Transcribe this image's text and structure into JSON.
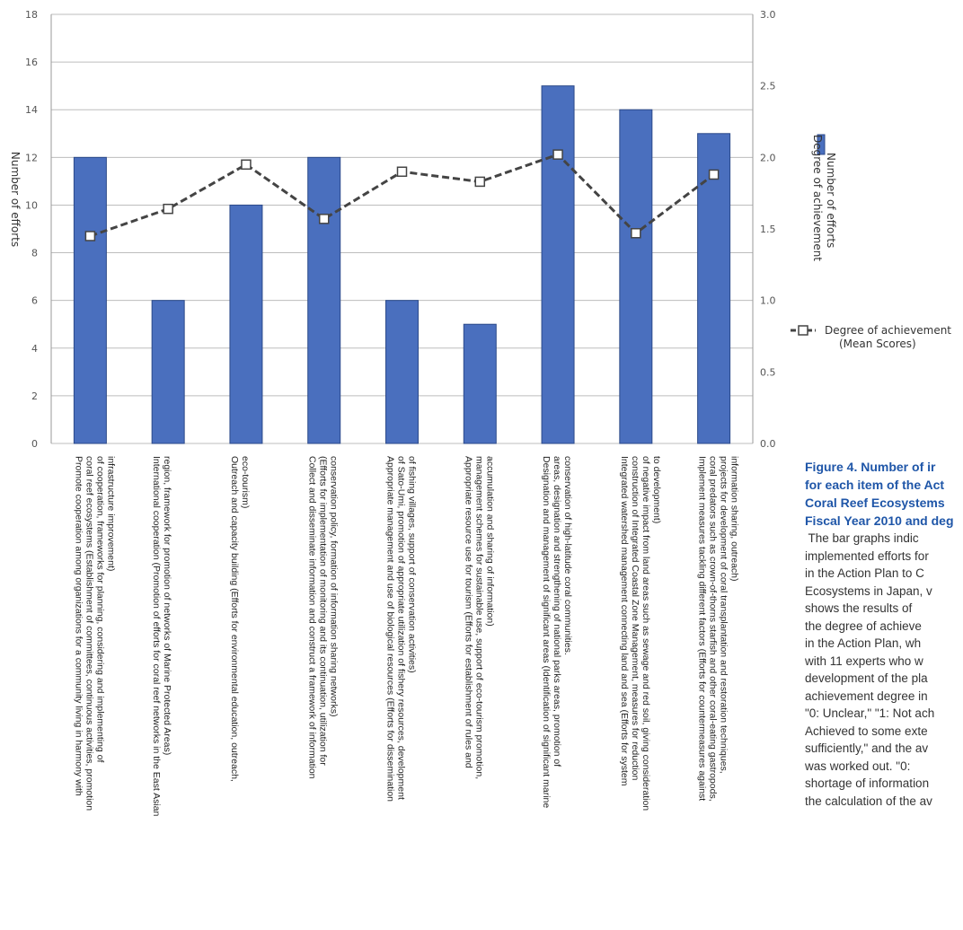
{
  "chart_data": {
    "type": "bar",
    "categories": [
      "Promote cooperation among organizations for a community living in harmony with coral reef ecosystems (Establishment of committees, continuous activities, promotion of cooperation, frameworks for planning, considering and implementing of infrastructure improvement)",
      "International cooperation (Promotion of efforts for coral reef networks in the East Asian region, framework for promotion of networks of Marine Protected Areas)",
      "Outreach and capacity building (Efforts for environmental education, outreach, eco-tourism)",
      "Collect and disseminate information and construct a framework of information (Efforts for implementation of monitoring and its continuation, utilization for conservation policy, formation of information sharing networks)",
      "Appropriate management and use of biological resources (Efforts for dissemination of Sato-Umi, promotion of appropriate utilization of fishery resources, development of fishing villages, support of conservation activities)",
      "Appropriate resource use for tourism (Efforts for establishment of rules and management schemes for sustainable use, support of eco-tourism promotion, accumulation and sharing of information)",
      "Designation and management of significant areas (Identification of significant marine areas, designation and strengthening of national parks areas, promotion of conservation of high-latitude coral communities.",
      "Integrated watershed management connecting land and sea (Efforts for system construction of Integrated Coastal Zone Management, measures for reduction of negative impact from land areas such as sewage and red soil, giving consideration to development)",
      "Implement measures tackling different factors (Efforts for countermeasures against coral predators such as crown-of-thorns starfish and other coral-eating gastropods, projects for development of coral transplantation and restoration techniques, information sharing, outreach)"
    ],
    "category_lines": [
      [
        "Promote cooperation among organizations for a community living in harmony with",
        "coral reef ecosystems (Establishment of committees, continuous activities, promotion",
        "of cooperation, frameworks for planning, considering and implementing of",
        "infrastructure improvement)"
      ],
      [
        "International cooperation (Promotion of efforts for coral reef networks in the East Asian",
        "region, framework for promotion of networks of Marine Protected Areas)"
      ],
      [
        "Outreach  and capacity building (Efforts for environmental education, outreach,",
        "eco-tourism)"
      ],
      [
        "Collect and disseminate information and construct a framework of information",
        "(Efforts for implementation of monitoring and its continuation, utilization for",
        "conservation policy, formation of information sharing networks)"
      ],
      [
        "Appropriate management and use of biological resources (Efforts for dissemination",
        "of Sato-Umi, promotion of appropriate utilization of fishery resources, development",
        "of fishing villages, support of conservation activities)"
      ],
      [
        "Appropriate resource use for tourism (Efforts for establishment of rules and",
        "management schemes for sustainable use, support of eco-tourism promotion,",
        "accumulation and sharing of information)"
      ],
      [
        "Designation and management of significant areas (Identification of significant marine",
        "areas, designation and strengthening of national parks areas, promotion of",
        "conservation of high-latitude coral communities."
      ],
      [
        "Integrated watershed management connecting land and sea (Efforts for system",
        "construction of Integrated Coastal Zone Management, measures for reduction",
        "of negative impact from land areas such as sewage and red soil, giving consideration",
        "to development)"
      ],
      [
        "Implement measures tackling different factors (Efforts for countermeasures against",
        "coral predators such as crown-of-thorns starfish and other coral-eating gastropods,",
        "projects for development of coral transplantation and restoration techniques,",
        "information sharing, outreach)"
      ]
    ],
    "series": [
      {
        "name": "Number of efforts",
        "type": "bar",
        "axis": "left",
        "values": [
          12,
          6,
          10,
          12,
          6,
          5,
          15,
          14,
          13
        ]
      },
      {
        "name": "Degree of achievement (Mean Scores)",
        "type": "line",
        "axis": "right",
        "values": [
          1.45,
          1.64,
          1.95,
          1.57,
          1.9,
          1.83,
          2.02,
          1.47,
          1.88
        ]
      }
    ],
    "ylabel": "Number of efforts",
    "y2label": "Degree of achievement",
    "ylim": [
      0,
      18
    ],
    "y2lim": [
      0,
      3.0
    ],
    "yticks": [
      "0",
      "2",
      "4",
      "6",
      "8",
      "10",
      "12",
      "14",
      "16",
      "18"
    ],
    "y2ticks": [
      "0.0",
      "0.5",
      "1.0",
      "1.5",
      "2.0",
      "2.5",
      "3.0"
    ],
    "grid": true,
    "legend": {
      "placement": "right",
      "bar_label": "Number of efforts",
      "line_label_1": "Degree of achievement",
      "line_label_2": "(Mean Scores)"
    },
    "colors": {
      "bar": "#4a6fbe",
      "bar_edge": "#2c4a8a",
      "line": "#444444",
      "grid": "#bdbdbd"
    }
  },
  "caption": {
    "title_lines": [
      "Figure 4. Number of ir",
      "for each item of the Act",
      "Coral Reef Ecosystems",
      "Fiscal Year 2010 and deg"
    ],
    "body_lines": [
      " The bar graphs indic",
      "implemented efforts for",
      "in the Action Plan to C",
      "Ecosystems in Japan, v",
      "shows the results of",
      "the degree of achieve",
      "in the Action Plan, wh",
      "with 11 experts who w",
      "development of the pla",
      "achievement degree in",
      "\"0: Unclear,\" \"1: Not ach",
      "Achieved to some exte",
      "sufficiently,\" and the av",
      "was worked out. \"0:",
      "shortage of information",
      "the calculation of the av"
    ]
  }
}
